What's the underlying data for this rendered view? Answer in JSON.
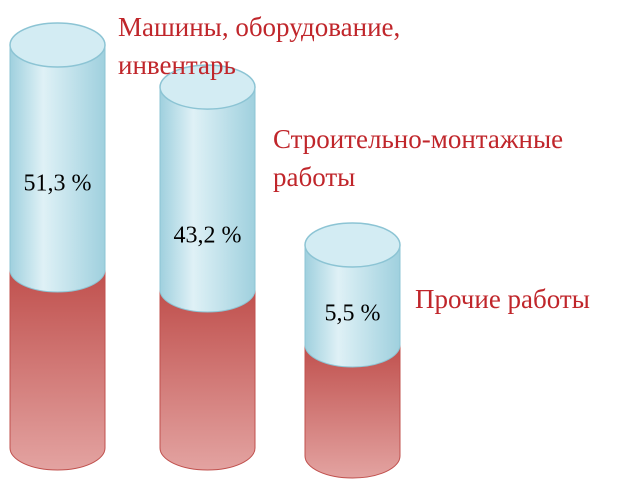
{
  "chart_data": {
    "type": "cylinder",
    "categories": [
      "Машины, оборудование, инвентарь",
      "Строительно-монтажные работы",
      "Прочие работы"
    ],
    "values": [
      51.3,
      43.2,
      5.5
    ],
    "value_labels": [
      "51,3 %",
      "43,2 %",
      "5,5 %"
    ],
    "color": "#a9d6e2",
    "base_color": "#c0504d"
  }
}
